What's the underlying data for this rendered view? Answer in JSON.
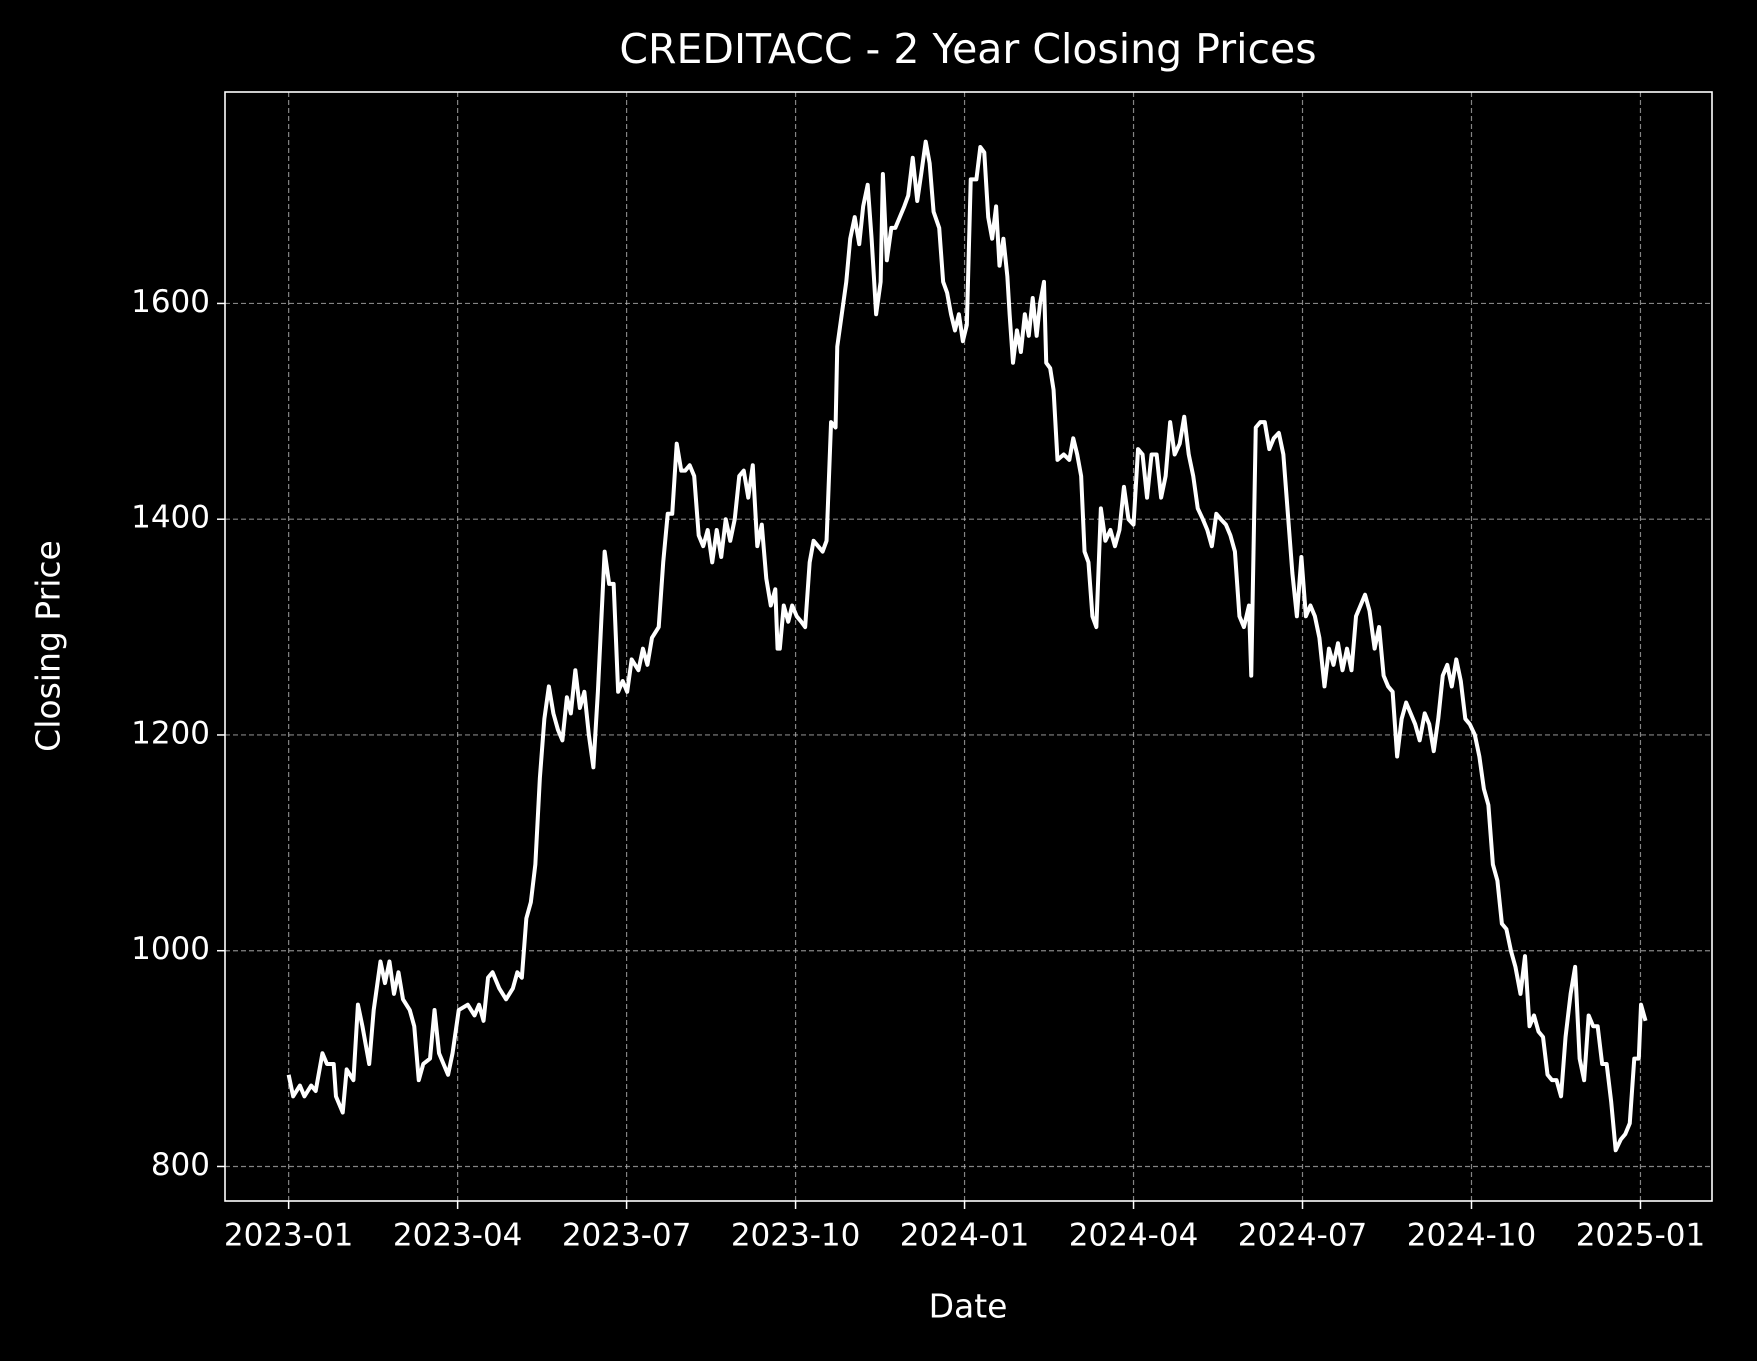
{
  "chart_data": {
    "type": "line",
    "title": "CREDITACC - 2 Year Closing Prices",
    "xlabel": "Date",
    "ylabel": "Closing Price",
    "color": "#ffffff",
    "grid": true,
    "xlim": [
      -1.13,
      25.27
    ],
    "ylim": [
      768,
      1796
    ],
    "xticks": [
      {
        "value": 0,
        "label": "2023-01"
      },
      {
        "value": 3,
        "label": "2023-04"
      },
      {
        "value": 6,
        "label": "2023-07"
      },
      {
        "value": 9,
        "label": "2023-10"
      },
      {
        "value": 12,
        "label": "2024-01"
      },
      {
        "value": 15,
        "label": "2024-04"
      },
      {
        "value": 18,
        "label": "2024-07"
      },
      {
        "value": 21,
        "label": "2024-10"
      },
      {
        "value": 24,
        "label": "2025-01"
      }
    ],
    "yticks": [
      800,
      1000,
      1200,
      1400,
      1600
    ],
    "x": [
      0,
      0.08,
      0.2,
      0.28,
      0.4,
      0.48,
      0.6,
      0.68,
      0.8,
      0.84,
      0.96,
      1.03,
      1.15,
      1.23,
      1.31,
      1.43,
      1.51,
      1.63,
      1.71,
      1.79,
      1.87,
      1.95,
      2.03,
      2.15,
      2.23,
      2.31,
      2.39,
      2.51,
      2.59,
      2.67,
      2.83,
      2.91,
      3.02,
      3.18,
      3.3,
      3.38,
      3.46,
      3.54,
      3.62,
      3.74,
      3.86,
      3.98,
      4.06,
      4.14,
      4.22,
      4.3,
      4.38,
      4.46,
      4.54,
      4.62,
      4.7,
      4.78,
      4.86,
      4.94,
      5.01,
      5.09,
      5.17,
      5.25,
      5.33,
      5.41,
      5.49,
      5.61,
      5.69,
      5.77,
      5.85,
      5.93,
      6.01,
      6.09,
      6.21,
      6.29,
      6.37,
      6.45,
      6.57,
      6.65,
      6.73,
      6.81,
      6.89,
      6.97,
      7.04,
      7.12,
      7.2,
      7.28,
      7.36,
      7.44,
      7.52,
      7.6,
      7.68,
      7.76,
      7.84,
      7.92,
      8.0,
      8.08,
      8.16,
      8.24,
      8.32,
      8.4,
      8.48,
      8.56,
      8.64,
      8.68,
      8.72,
      8.79,
      8.87,
      8.94,
      9.02,
      9.1,
      9.17,
      9.25,
      9.32,
      9.4,
      9.48,
      9.55,
      9.63,
      9.71,
      9.74,
      9.82,
      9.9,
      9.97,
      10.05,
      10.13,
      10.2,
      10.28,
      10.35,
      10.43,
      10.51,
      10.55,
      10.62,
      10.7,
      10.77,
      10.85,
      10.93,
      11.0,
      11.08,
      11.16,
      11.23,
      11.31,
      11.38,
      11.45,
      11.55,
      11.62,
      11.69,
      11.76,
      11.83,
      11.9,
      11.97,
      12.04,
      12.11,
      12.21,
      12.28,
      12.35,
      12.42,
      12.49,
      12.56,
      12.62,
      12.69,
      12.76,
      12.8,
      12.86,
      12.93,
      13.0,
      13.07,
      13.14,
      13.21,
      13.28,
      13.34,
      13.41,
      13.45,
      13.52,
      13.58,
      13.65,
      13.76,
      13.86,
      13.93,
      14.0,
      14.07,
      14.13,
      14.2,
      14.27,
      14.34,
      14.42,
      14.5,
      14.59,
      14.67,
      14.75,
      14.83,
      14.91,
      15.0,
      15.08,
      15.16,
      15.24,
      15.32,
      15.41,
      15.49,
      15.57,
      15.65,
      15.73,
      15.82,
      15.9,
      15.98,
      16.06,
      16.14,
      16.23,
      16.31,
      16.39,
      16.47,
      16.55,
      16.64,
      16.72,
      16.8,
      16.88,
      16.96,
      17.05,
      17.09,
      17.17,
      17.25,
      17.33,
      17.41,
      17.49,
      17.58,
      17.66,
      17.74,
      17.82,
      17.9,
      17.98,
      18.06,
      18.14,
      18.22,
      18.3,
      18.39,
      18.47,
      18.55,
      18.63,
      18.71,
      18.79,
      18.87,
      18.95,
      19.03,
      19.11,
      19.19,
      19.28,
      19.36,
      19.44,
      19.52,
      19.6,
      19.68,
      19.76,
      19.84,
      19.92,
      20.0,
      20.08,
      20.17,
      20.25,
      20.33,
      20.41,
      20.49,
      20.57,
      20.65,
      20.73,
      20.81,
      20.89,
      20.97,
      21.06,
      21.14,
      21.22,
      21.3,
      21.38,
      21.46,
      21.54,
      21.62,
      21.7,
      21.78,
      21.87,
      21.95,
      22.03,
      22.11,
      22.19,
      22.27,
      22.35,
      22.43,
      22.51,
      22.59,
      22.67,
      22.76,
      22.84,
      22.92,
      23.0,
      23.08,
      23.16,
      23.24,
      23.32,
      23.4,
      23.48,
      23.56,
      23.65,
      23.73,
      23.81,
      23.89,
      23.97,
      24.01,
      24.09
    ],
    "values": [
      885,
      865,
      875,
      865,
      875,
      870,
      905,
      895,
      895,
      865,
      850,
      890,
      880,
      950,
      930,
      895,
      945,
      990,
      970,
      990,
      960,
      980,
      955,
      945,
      930,
      880,
      895,
      900,
      945,
      905,
      885,
      905,
      945,
      950,
      940,
      950,
      935,
      975,
      980,
      965,
      955,
      965,
      980,
      975,
      1030,
      1045,
      1080,
      1160,
      1215,
      1245,
      1220,
      1205,
      1195,
      1235,
      1220,
      1260,
      1225,
      1240,
      1200,
      1170,
      1240,
      1370,
      1340,
      1340,
      1240,
      1250,
      1240,
      1270,
      1260,
      1280,
      1265,
      1290,
      1300,
      1360,
      1405,
      1405,
      1470,
      1445,
      1445,
      1450,
      1440,
      1385,
      1375,
      1390,
      1360,
      1390,
      1365,
      1400,
      1380,
      1400,
      1440,
      1445,
      1420,
      1450,
      1375,
      1395,
      1345,
      1320,
      1335,
      1280,
      1280,
      1320,
      1305,
      1320,
      1310,
      1305,
      1300,
      1360,
      1380,
      1375,
      1370,
      1380,
      1490,
      1485,
      1560,
      1590,
      1620,
      1660,
      1680,
      1655,
      1690,
      1710,
      1660,
      1590,
      1620,
      1720,
      1640,
      1670,
      1670,
      1680,
      1690,
      1700,
      1735,
      1695,
      1720,
      1750,
      1730,
      1685,
      1670,
      1620,
      1610,
      1590,
      1575,
      1590,
      1565,
      1580,
      1715,
      1715,
      1745,
      1740,
      1680,
      1660,
      1690,
      1635,
      1660,
      1625,
      1590,
      1545,
      1575,
      1555,
      1590,
      1570,
      1605,
      1570,
      1600,
      1620,
      1545,
      1540,
      1520,
      1455,
      1460,
      1455,
      1475,
      1460,
      1440,
      1370,
      1360,
      1310,
      1300,
      1410,
      1380,
      1390,
      1375,
      1390,
      1430,
      1400,
      1395,
      1465,
      1460,
      1420,
      1460,
      1460,
      1420,
      1440,
      1490,
      1460,
      1470,
      1495,
      1460,
      1440,
      1410,
      1400,
      1390,
      1375,
      1405,
      1400,
      1395,
      1385,
      1370,
      1310,
      1300,
      1320,
      1255,
      1485,
      1490,
      1490,
      1465,
      1475,
      1480,
      1460,
      1405,
      1350,
      1310,
      1365,
      1310,
      1320,
      1310,
      1290,
      1245,
      1280,
      1265,
      1285,
      1260,
      1280,
      1260,
      1310,
      1320,
      1330,
      1315,
      1280,
      1300,
      1255,
      1245,
      1240,
      1180,
      1215,
      1230,
      1220,
      1210,
      1195,
      1220,
      1210,
      1185,
      1215,
      1255,
      1265,
      1245,
      1270,
      1250,
      1215,
      1210,
      1200,
      1180,
      1150,
      1135,
      1080,
      1065,
      1025,
      1020,
      1000,
      985,
      960,
      995,
      930,
      940,
      925,
      920,
      885,
      880,
      880,
      865,
      920,
      960,
      985,
      900,
      880,
      940,
      930,
      930,
      895,
      895,
      860,
      815,
      825,
      830,
      840,
      900,
      900,
      950,
      935
    ]
  }
}
